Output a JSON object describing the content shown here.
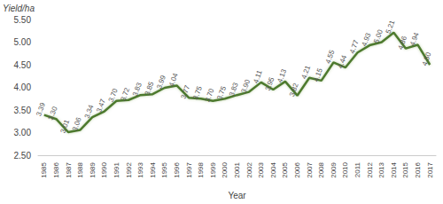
{
  "chart_data": {
    "type": "line",
    "x_label": "Year",
    "y_label": "Yield/ha",
    "categories": [
      "1985",
      "1986",
      "1987",
      "1988",
      "1989",
      "1990",
      "1991",
      "1992",
      "1993",
      "1994",
      "1995",
      "1996",
      "1997",
      "1998",
      "1999",
      "2000",
      "2001",
      "2002",
      "2003",
      "2004",
      "2005",
      "2006",
      "2007",
      "2008",
      "2009",
      "2010",
      "2011",
      "2012",
      "2013",
      "2014",
      "2015",
      "2016",
      "2017"
    ],
    "values": [
      3.39,
      3.3,
      3.01,
      3.06,
      3.34,
      3.47,
      3.7,
      3.72,
      3.83,
      3.85,
      3.99,
      4.04,
      3.77,
      3.75,
      3.7,
      3.75,
      3.83,
      3.9,
      4.11,
      3.95,
      4.13,
      3.82,
      4.21,
      4.15,
      4.55,
      4.44,
      4.77,
      4.93,
      5.0,
      5.21,
      4.86,
      4.94,
      4.5
    ],
    "value_labels": [
      "3.39",
      "3.30",
      "3.01",
      "3.06",
      "3.34",
      "3.47",
      "3.70",
      "3.72",
      "3.83",
      "3.85",
      "3.99",
      "4.04",
      "3.77",
      "3.75",
      "3.70",
      "3.75",
      "3.83",
      "3.90",
      "4.11",
      "3.95",
      "4.13",
      "3.82",
      "4.21",
      "4.15",
      "4.55",
      "4.44",
      "4.77",
      "4.93",
      "5.00",
      "5.21",
      "4.86",
      "4.94",
      "4.50"
    ],
    "color": "#4e7a2f",
    "marker": "none",
    "data_labels": true,
    "grid": false,
    "ylim": [
      2.5,
      5.5
    ],
    "yticks": [
      {
        "value": 2.5,
        "label": "2.50"
      },
      {
        "value": 3,
        "label": "3.00"
      },
      {
        "value": 3.5,
        "label": "3.50"
      },
      {
        "value": 4,
        "label": "4.00"
      },
      {
        "value": 4.5,
        "label": "4.50"
      },
      {
        "value": 5,
        "label": "5.00"
      },
      {
        "value": 5.5,
        "label": "5.50"
      }
    ]
  }
}
